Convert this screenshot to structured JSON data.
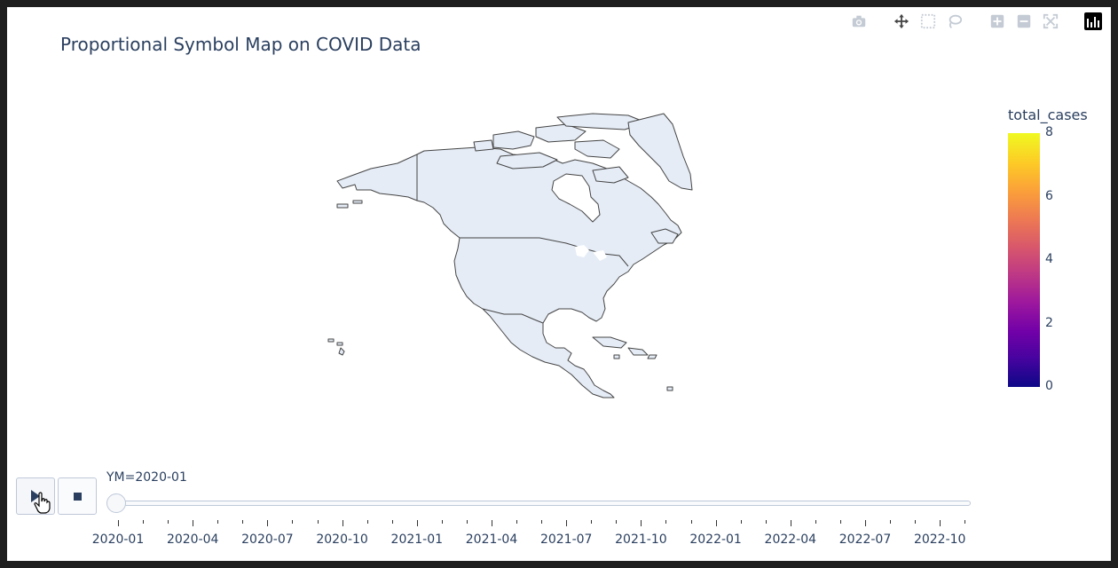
{
  "title": "Proportional Symbol Map on COVID Data",
  "modebar": {
    "icons": [
      "camera-icon",
      "pan-icon",
      "box-select-icon",
      "lasso-icon",
      "zoom-in-icon",
      "zoom-out-icon",
      "autoscale-icon",
      "plotly-logo-icon"
    ]
  },
  "map": {
    "region": "North America",
    "land_color": "#e5ecf6",
    "border_color": "#444444"
  },
  "colorbar": {
    "title": "total_cases",
    "ticks": [
      "0",
      "2",
      "4",
      "6",
      "8"
    ],
    "range": [
      0,
      8
    ],
    "colorscale": "plasma",
    "colors": [
      "#0d0887",
      "#46039f",
      "#7201a8",
      "#9c179e",
      "#bd3786",
      "#d8576b",
      "#ed7953",
      "#fb9f3a",
      "#fdca26",
      "#f0f921"
    ]
  },
  "animation": {
    "play_icon": "play-icon",
    "stop_icon": "stop-icon",
    "current_label": "YM=2020-01",
    "current_index": 0,
    "tick_labels": [
      "2020-01",
      "2020-04",
      "2020-07",
      "2020-10",
      "2021-01",
      "2021-04",
      "2021-07",
      "2021-10",
      "2022-01",
      "2022-04",
      "2022-07",
      "2022-10"
    ]
  }
}
